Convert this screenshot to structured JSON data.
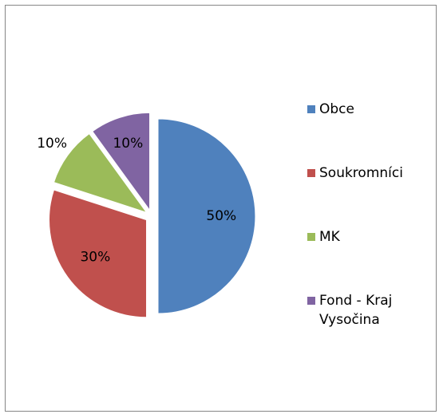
{
  "chart_data": {
    "type": "pie",
    "categories": [
      "Obce",
      "Soukromníci",
      "MK",
      "Fond - Kraj Vysočina"
    ],
    "values": [
      50,
      30,
      10,
      10
    ],
    "value_labels": [
      "50%",
      "30%",
      "10%",
      "10%"
    ],
    "colors": [
      "#4f81bd",
      "#c0504d",
      "#9bbb59",
      "#8064a2"
    ],
    "legend": "right"
  }
}
